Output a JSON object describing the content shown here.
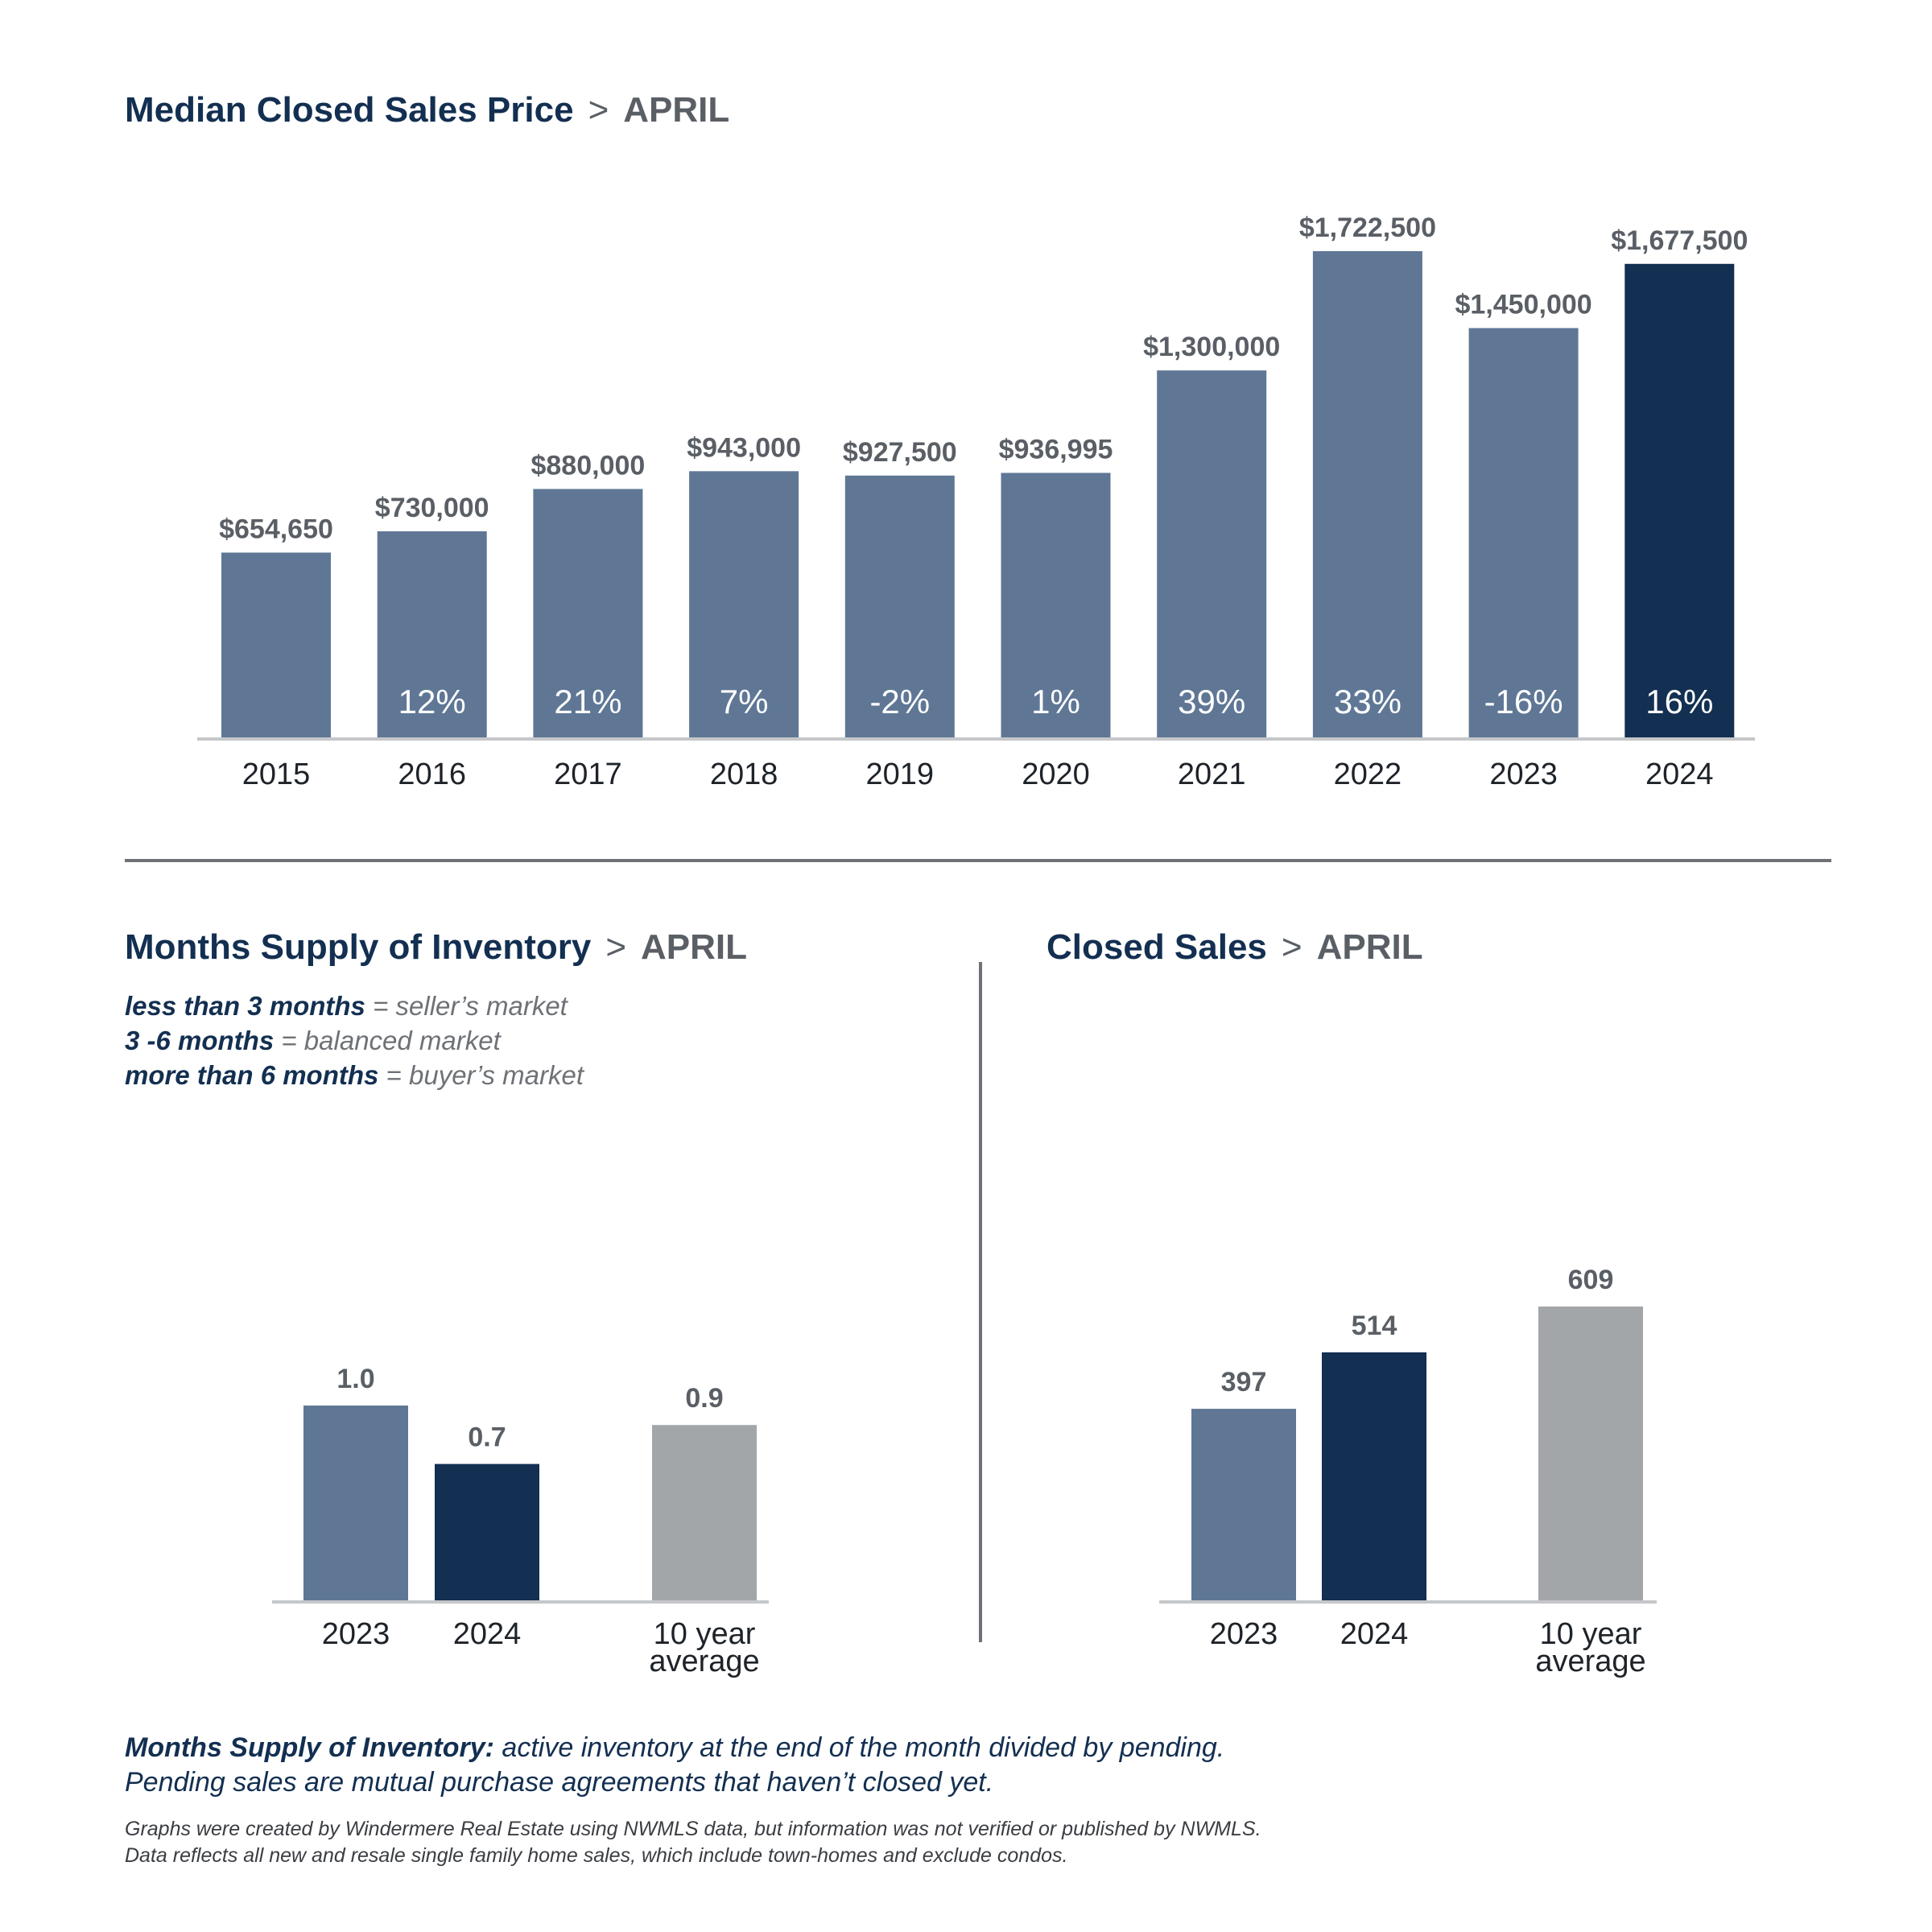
{
  "colors": {
    "bar": "#5f7795",
    "highlight": "#132f51",
    "average": "#a3a6a9",
    "axis": "#c5c7ca",
    "value_label": "#5a5f66",
    "tick_label": "#1e2329",
    "pct_label": "#ffffff"
  },
  "titles": {
    "median": {
      "main": "Median Closed Sales Price",
      "sep": ">",
      "month": "APRIL"
    },
    "supply": {
      "main": "Months Supply of Inventory",
      "sep": ">",
      "month": "APRIL"
    },
    "closed": {
      "main": "Closed Sales",
      "sep": ">",
      "month": "APRIL"
    }
  },
  "legend": [
    {
      "key": "less than 3 months",
      "rest": " = seller’s market"
    },
    {
      "key": "3 -6 months",
      "rest": " = balanced market"
    },
    {
      "key": "more than 6 months",
      "rest": " = buyer’s market"
    }
  ],
  "note": {
    "key": "Months Supply of Inventory:",
    "line1": " active inventory at the end of the month divided by pending.",
    "line2": "Pending sales are mutual purchase agreements that haven’t closed yet."
  },
  "source": {
    "line1": "Graphs were created by Windermere Real Estate using NWMLS data, but information was not verified or published by NWMLS.",
    "line2": "Data reflects all new and resale single family home sales, which include town-homes and exclude condos."
  },
  "chart_data": [
    {
      "id": "median",
      "type": "bar",
      "title": "Median Closed Sales Price > APRIL",
      "categories": [
        "2015",
        "2016",
        "2017",
        "2018",
        "2019",
        "2020",
        "2021",
        "2022",
        "2023",
        "2024"
      ],
      "values": [
        654650,
        730000,
        880000,
        943000,
        927500,
        936995,
        1300000,
        1722500,
        1450000,
        1677500
      ],
      "value_labels": [
        "$654,650",
        "$730,000",
        "$880,000",
        "$943,000",
        "$927,500",
        "$936,995",
        "$1,300,000",
        "$1,722,500",
        "$1,450,000",
        "$1,677,500"
      ],
      "change_labels": [
        "",
        "12%",
        "21%",
        "7%",
        "-2%",
        "1%",
        "39%",
        "33%",
        "-16%",
        "16%"
      ],
      "highlight": [
        "2024"
      ],
      "ylim": [
        0,
        1722500
      ],
      "grid": false
    },
    {
      "id": "supply",
      "type": "bar",
      "title": "Months Supply of Inventory > APRIL",
      "categories": [
        [
          "2023"
        ],
        [
          "2024"
        ],
        [
          "10 year",
          "average"
        ]
      ],
      "values": [
        1.0,
        0.7,
        0.9
      ],
      "value_labels": [
        "1.0",
        "0.7",
        "0.9"
      ],
      "colors": [
        "bar",
        "highlight",
        "average"
      ],
      "ylim": [
        0,
        1.0
      ],
      "grid": false
    },
    {
      "id": "closed",
      "type": "bar",
      "title": "Closed Sales > APRIL",
      "categories": [
        [
          "2023"
        ],
        [
          "2024"
        ],
        [
          "10 year",
          "average"
        ]
      ],
      "values": [
        397,
        514,
        609
      ],
      "value_labels": [
        "397",
        "514",
        "609"
      ],
      "colors": [
        "bar",
        "highlight",
        "average"
      ],
      "ylim": [
        0,
        609
      ],
      "grid": false
    }
  ]
}
